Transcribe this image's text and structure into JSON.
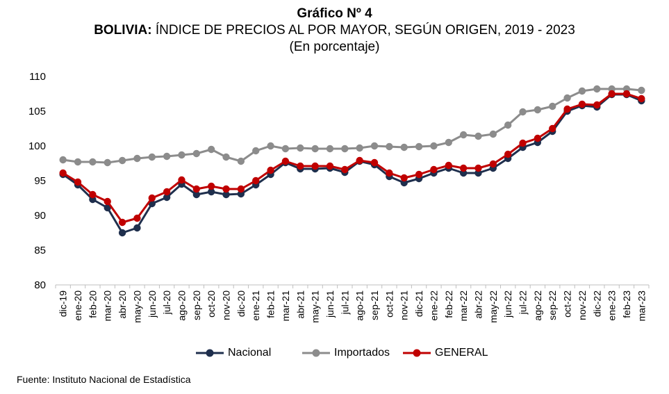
{
  "title": "Gráfico Nº 4",
  "subtitle_bold": "BOLIVIA:",
  "subtitle_rest": " ÍNDICE DE PRECIOS AL POR MAYOR, SEGÚN ORIGEN, 2019 - 2023",
  "subtitle_units": "(En porcentaje)",
  "source": "Fuente: Instituto Nacional de Estadística",
  "colors": {
    "nacional": "#1f2f4d",
    "importados": "#8c8c8c",
    "general": "#c00000",
    "axis": "#bfbfbf"
  },
  "chart_data": {
    "type": "line",
    "title": "Gráfico Nº 4",
    "categories": [
      "dic-19",
      "ene-20",
      "feb-20",
      "mar-20",
      "abr-20",
      "may-20",
      "jun-20",
      "jul-20",
      "ago-20",
      "sep-20",
      "oct-20",
      "nov-20",
      "dic-20",
      "ene-21",
      "feb-21",
      "mar-21",
      "abr-21",
      "may-21",
      "jun-21",
      "jul-21",
      "ago-21",
      "sep-21",
      "oct-21",
      "nov-21",
      "dic-21",
      "ene-22",
      "feb-22",
      "mar-22",
      "abr-22",
      "may-22",
      "jun-22",
      "jul-22",
      "ago-22",
      "sep-22",
      "oct-22",
      "nov-22",
      "dic-22",
      "ene-23",
      "feb-23",
      "mar-23"
    ],
    "yticks": [
      "110",
      "105",
      "100",
      "95",
      "90",
      "85",
      "80"
    ],
    "ylim": [
      80,
      110
    ],
    "grid": false,
    "legend_position": "bottom",
    "series": [
      {
        "name": "Nacional",
        "color": "#1f2f4d",
        "values": [
          95.9,
          94.4,
          92.3,
          91.1,
          87.5,
          88.2,
          91.7,
          92.6,
          94.5,
          93.0,
          93.4,
          93.0,
          93.1,
          94.4,
          95.9,
          97.6,
          96.7,
          96.7,
          96.8,
          96.2,
          97.8,
          97.3,
          95.6,
          94.7,
          95.3,
          96.1,
          96.8,
          96.1,
          96.1,
          96.8,
          98.2,
          99.8,
          100.5,
          102.1,
          105.0,
          105.8,
          105.6,
          107.4,
          107.4,
          106.5
        ]
      },
      {
        "name": "Importados",
        "color": "#8c8c8c",
        "values": [
          98.0,
          97.7,
          97.7,
          97.6,
          97.9,
          98.2,
          98.4,
          98.5,
          98.7,
          98.9,
          99.5,
          98.4,
          97.8,
          99.3,
          100.0,
          99.6,
          99.7,
          99.6,
          99.6,
          99.6,
          99.7,
          100.0,
          99.9,
          99.8,
          99.9,
          100.0,
          100.5,
          101.6,
          101.4,
          101.7,
          103.0,
          104.9,
          105.2,
          105.7,
          106.9,
          107.9,
          108.2,
          108.2,
          108.2,
          108.0
        ]
      },
      {
        "name": "GENERAL",
        "color": "#c00000",
        "values": [
          96.1,
          94.8,
          93.0,
          92.0,
          89.0,
          89.6,
          92.5,
          93.4,
          95.1,
          93.8,
          94.2,
          93.8,
          93.8,
          95.0,
          96.5,
          97.8,
          97.1,
          97.1,
          97.1,
          96.6,
          97.9,
          97.6,
          96.1,
          95.4,
          95.9,
          96.6,
          97.2,
          96.8,
          96.8,
          97.4,
          98.8,
          100.4,
          101.1,
          102.5,
          105.3,
          106.0,
          105.9,
          107.5,
          107.5,
          106.8
        ]
      }
    ]
  }
}
